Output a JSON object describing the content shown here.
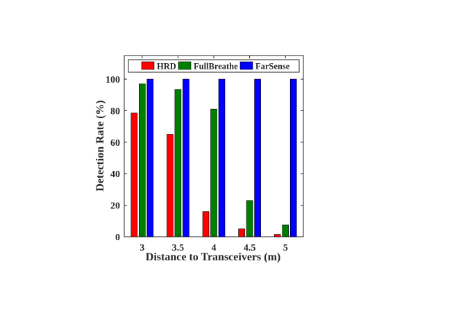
{
  "chart_data": {
    "type": "bar",
    "categories": [
      "3",
      "3.5",
      "4",
      "4.5",
      "5"
    ],
    "series": [
      {
        "name": "HRD",
        "color": "#ff0000",
        "values": [
          78.5,
          65,
          16,
          5,
          1.5
        ]
      },
      {
        "name": "FullBreathe",
        "color": "#008000",
        "values": [
          97,
          93.5,
          81,
          23,
          7.5
        ]
      },
      {
        "name": "FarSense",
        "color": "#0000ff",
        "values": [
          100,
          100,
          100,
          100,
          100
        ]
      }
    ],
    "xlabel": "Distance to Transceivers (m)",
    "ylabel": "Detection Rate (%)",
    "ylim": [
      0,
      115
    ],
    "yticks": [
      0,
      20,
      40,
      60,
      80,
      100
    ],
    "grid": false,
    "legend_position": "top",
    "legend_orientation": "horizontal"
  }
}
